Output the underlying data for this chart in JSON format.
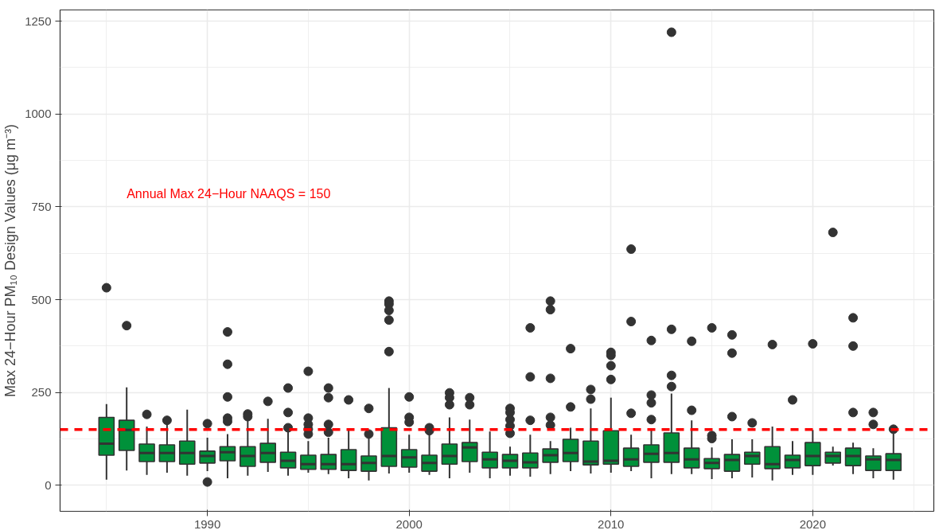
{
  "chart_data": {
    "type": "box",
    "ylabel": "Max 24−Hour PM₁₀ Design Values (μg m⁻³)",
    "color": "#00913a",
    "x": [
      1985,
      1986,
      1987,
      1988,
      1989,
      1990,
      1991,
      1992,
      1993,
      1994,
      1995,
      1996,
      1997,
      1998,
      1999,
      2000,
      2001,
      2002,
      2003,
      2004,
      2005,
      2006,
      2007,
      2008,
      2009,
      2010,
      2011,
      2012,
      2013,
      2014,
      2015,
      2016,
      2017,
      2018,
      2019,
      2020,
      2021,
      2022,
      2023,
      2024
    ],
    "boxes": [
      {
        "low": 15,
        "q1": 81,
        "median": 112,
        "q3": 183,
        "high": 219,
        "outliers": [
          532
        ]
      },
      {
        "low": 40,
        "q1": 94,
        "median": 149,
        "q3": 175,
        "high": 264,
        "outliers": [
          430
        ]
      },
      {
        "low": 28,
        "q1": 64,
        "median": 87,
        "q3": 111,
        "high": 158,
        "outliers": [
          191
        ]
      },
      {
        "low": 34,
        "q1": 64,
        "median": 87,
        "q3": 109,
        "high": 166,
        "outliers": [
          175
        ]
      },
      {
        "low": 26,
        "q1": 57,
        "median": 87,
        "q3": 119,
        "high": 204
      },
      {
        "low": 38,
        "q1": 60,
        "median": 79,
        "q3": 92,
        "high": 128,
        "outliers": [
          166,
          9
        ]
      },
      {
        "low": 19,
        "q1": 66,
        "median": 89,
        "q3": 104,
        "high": 138,
        "outliers": [
          413,
          326,
          238,
          181,
          172
        ]
      },
      {
        "low": 26,
        "q1": 51,
        "median": 79,
        "q3": 104,
        "high": 198,
        "outliers": [
          192,
          185
        ]
      },
      {
        "low": 36,
        "q1": 62,
        "median": 87,
        "q3": 113,
        "high": 179,
        "outliers": [
          226
        ]
      },
      {
        "low": 26,
        "q1": 47,
        "median": 66,
        "q3": 89,
        "high": 155,
        "outliers": [
          262,
          196,
          155
        ]
      },
      {
        "low": 34,
        "q1": 43,
        "median": 57,
        "q3": 81,
        "high": 119,
        "outliers": [
          307,
          181,
          164,
          151,
          138
        ]
      },
      {
        "low": 30,
        "q1": 43,
        "median": 57,
        "q3": 83,
        "high": 128,
        "outliers": [
          262,
          236,
          164,
          143
        ]
      },
      {
        "low": 19,
        "q1": 40,
        "median": 57,
        "q3": 96,
        "high": 153,
        "outliers": [
          230
        ]
      },
      {
        "low": 13,
        "q1": 38,
        "median": 60,
        "q3": 79,
        "high": 134,
        "outliers": [
          207,
          138
        ]
      },
      {
        "low": 32,
        "q1": 51,
        "median": 79,
        "q3": 155,
        "high": 262,
        "outliers": [
          496,
          488,
          471,
          445,
          360
        ]
      },
      {
        "low": 34,
        "q1": 49,
        "median": 75,
        "q3": 96,
        "high": 136,
        "outliers": [
          238,
          183,
          170
        ]
      },
      {
        "low": 28,
        "q1": 38,
        "median": 60,
        "q3": 81,
        "high": 140,
        "outliers": [
          155,
          147
        ]
      },
      {
        "low": 19,
        "q1": 57,
        "median": 79,
        "q3": 111,
        "high": 183,
        "outliers": [
          249,
          236,
          217
        ]
      },
      {
        "low": 34,
        "q1": 64,
        "median": 102,
        "q3": 115,
        "high": 177,
        "outliers": [
          236,
          217
        ]
      },
      {
        "low": 19,
        "q1": 47,
        "median": 70,
        "q3": 89,
        "high": 145
      },
      {
        "low": 26,
        "q1": 47,
        "median": 66,
        "q3": 83,
        "high": 104,
        "outliers": [
          207,
          196,
          177,
          160,
          140
        ]
      },
      {
        "low": 23,
        "q1": 47,
        "median": 62,
        "q3": 87,
        "high": 136,
        "outliers": [
          424,
          292,
          175
        ]
      },
      {
        "low": 30,
        "q1": 62,
        "median": 81,
        "q3": 98,
        "high": 119,
        "outliers": [
          496,
          473,
          288,
          183,
          162
        ]
      },
      {
        "low": 38,
        "q1": 64,
        "median": 87,
        "q3": 124,
        "high": 155,
        "outliers": [
          368,
          211
        ]
      },
      {
        "low": 32,
        "q1": 55,
        "median": 64,
        "q3": 119,
        "high": 207,
        "outliers": [
          258,
          232
        ]
      },
      {
        "low": 34,
        "q1": 57,
        "median": 66,
        "q3": 147,
        "high": 236,
        "outliers": [
          358,
          350,
          322,
          285
        ]
      },
      {
        "low": 38,
        "q1": 51,
        "median": 70,
        "q3": 100,
        "high": 136,
        "outliers": [
          636,
          441,
          194
        ]
      },
      {
        "low": 19,
        "q1": 62,
        "median": 85,
        "q3": 109,
        "high": 150,
        "outliers": [
          390,
          243,
          222,
          177
        ]
      },
      {
        "low": 30,
        "q1": 62,
        "median": 87,
        "q3": 141,
        "high": 247,
        "outliers": [
          1220,
          420,
          296,
          266
        ]
      },
      {
        "low": 30,
        "q1": 47,
        "median": 70,
        "q3": 100,
        "high": 175,
        "outliers": [
          388,
          202
        ]
      },
      {
        "low": 17,
        "q1": 45,
        "median": 60,
        "q3": 72,
        "high": 102,
        "outliers": [
          424,
          134,
          126
        ]
      },
      {
        "low": 19,
        "q1": 38,
        "median": 68,
        "q3": 83,
        "high": 124,
        "outliers": [
          405,
          356,
          185
        ]
      },
      {
        "low": 21,
        "q1": 57,
        "median": 79,
        "q3": 89,
        "high": 124,
        "outliers": [
          168
        ]
      },
      {
        "low": 13,
        "q1": 45,
        "median": 57,
        "q3": 104,
        "high": 158,
        "outliers": [
          379
        ]
      },
      {
        "low": 28,
        "q1": 47,
        "median": 68,
        "q3": 81,
        "high": 119,
        "outliers": [
          230
        ]
      },
      {
        "low": 28,
        "q1": 53,
        "median": 79,
        "q3": 115,
        "high": 149,
        "outliers": [
          381
        ]
      },
      {
        "low": 53,
        "q1": 60,
        "median": 79,
        "q3": 89,
        "high": 104,
        "outliers": [
          681
        ]
      },
      {
        "low": 30,
        "q1": 53,
        "median": 79,
        "q3": 100,
        "high": 115,
        "outliers": [
          451,
          375,
          196
        ]
      },
      {
        "low": 19,
        "q1": 40,
        "median": 70,
        "q3": 79,
        "high": 100,
        "outliers": [
          196,
          164
        ]
      },
      {
        "low": 15,
        "q1": 40,
        "median": 68,
        "q3": 85,
        "high": 140,
        "outliers": [
          151
        ]
      }
    ],
    "xlim": [
      1982.7,
      2026
    ],
    "ylim": [
      -70,
      1280
    ],
    "xticks": [
      1990,
      2000,
      2010,
      2020
    ],
    "yticks": [
      0,
      250,
      500,
      750,
      1000,
      1250
    ],
    "ref_lines": [
      {
        "axis": "y",
        "value": 150,
        "label": "Annual Max 24−Hour NAAQS = 150",
        "color": "#ff0000",
        "line_style": "dashed"
      }
    ],
    "grid": true
  }
}
